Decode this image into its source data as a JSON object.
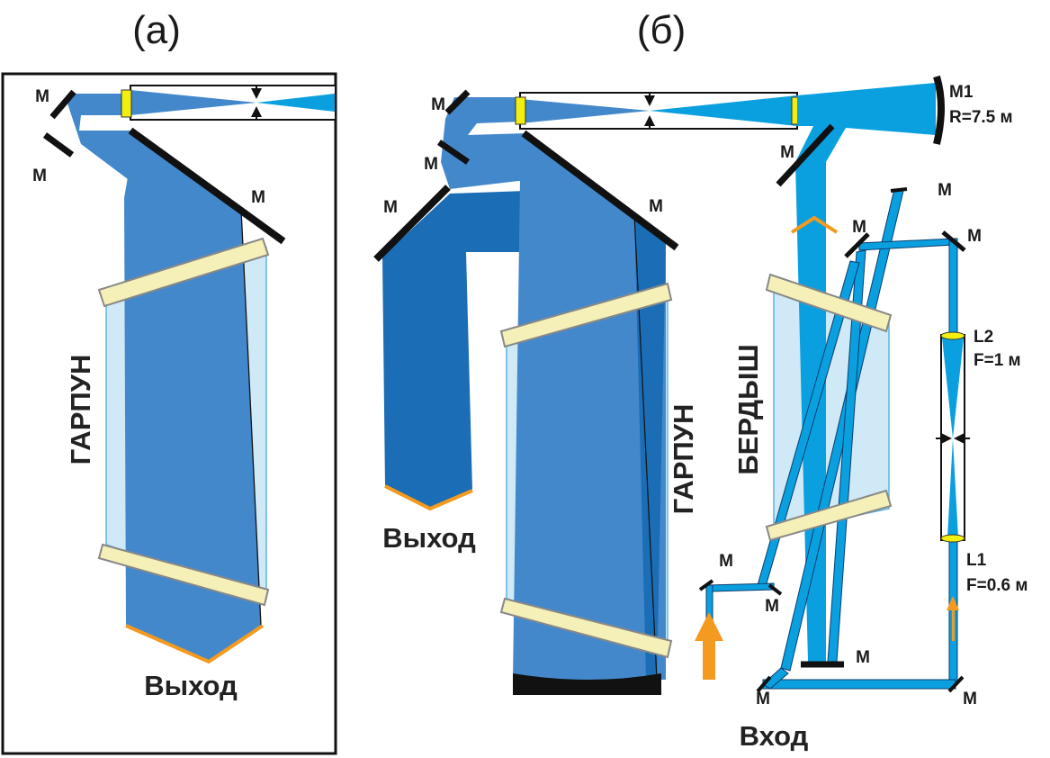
{
  "panels": {
    "a": "(а)",
    "b": "(б)"
  },
  "labels": {
    "mirror": "M",
    "output": "Выход",
    "input": "Вход",
    "garpun": "ГАРПУН",
    "berdysh": "БЕРДЫШ",
    "m1_name": "M1",
    "m1_radius": "R=7.5 м",
    "l2_name": "L2",
    "l2_focal": "F=1 м",
    "l1_name": "L1",
    "l1_focal": "F=0.6 м"
  },
  "colors": {
    "beam_main": "#4488cc",
    "beam_dark": "#1b6db5",
    "beam_light": "#0aa0e0",
    "cell": "#cfe9f6",
    "window": "#f4f0b8",
    "mirror": "#111111",
    "orange": "#f39a1f",
    "lens": "#f2ee10"
  }
}
